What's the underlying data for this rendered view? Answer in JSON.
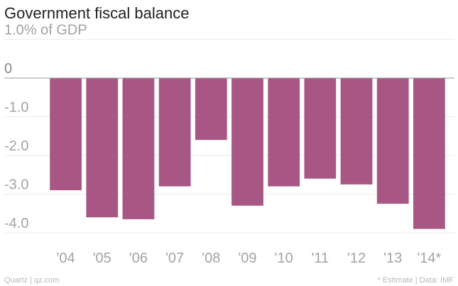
{
  "title": "Government fiscal balance",
  "footer": {
    "source_left": "Quartz | qz.com",
    "source_right": "* Estimate | Data: IMF"
  },
  "colors": {
    "bar": "#a85785",
    "grid": "#ececec",
    "zero_line": "#9a9a9a",
    "tick_text": "#a3a3a3",
    "title_text": "#222222"
  },
  "chart_data": {
    "type": "bar",
    "title": "Government fiscal balance",
    "ylabel": "% of GDP",
    "categories": [
      "'04",
      "'05",
      "'06",
      "'07",
      "'08",
      "'09",
      "'10",
      "'11",
      "'12",
      "'13",
      "'14*"
    ],
    "values": [
      -2.9,
      -3.6,
      -3.65,
      -2.8,
      -1.6,
      -3.3,
      -2.8,
      -2.6,
      -2.75,
      -3.25,
      -3.9
    ],
    "y_ticks": [
      {
        "value": 1.0,
        "label": "1.0% of GDP"
      },
      {
        "value": 0,
        "label": "0"
      },
      {
        "value": -1.0,
        "label": "-1.0"
      },
      {
        "value": -2.0,
        "label": "-2.0"
      },
      {
        "value": -3.0,
        "label": "-3.0"
      },
      {
        "value": -4.0,
        "label": "-4.0"
      }
    ],
    "ylim": [
      -4.2,
      1.0
    ],
    "grid": true,
    "legend": "none"
  }
}
